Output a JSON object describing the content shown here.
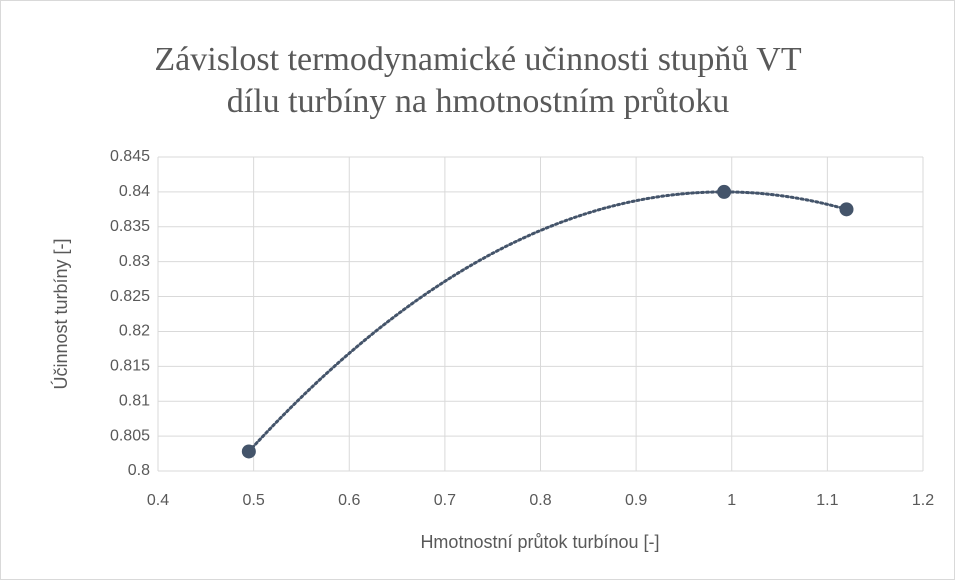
{
  "chart_data": {
    "type": "scatter",
    "title": [
      "Závislost termodynamické učinnosti stupňů VT",
      "dílu turbíny na hmotnostním průtoku"
    ],
    "xlabel": "Hmotnostní průtok turbínou [-]",
    "ylabel": "Účinnost turbíny [-]",
    "series": [
      {
        "name": "Účinnost turbíny",
        "color": "#44546a",
        "x": [
          0.495,
          0.992,
          1.12
        ],
        "values": [
          0.8028,
          0.84,
          0.8375
        ]
      }
    ],
    "trendline": {
      "type": "polynomial",
      "order": 2
    },
    "xlim": [
      0.4,
      1.2
    ],
    "xticks": [
      0.4,
      0.5,
      0.6,
      0.7,
      0.8,
      0.9,
      1,
      1.1,
      1.2
    ],
    "ylim": [
      0.8,
      0.845
    ],
    "yticks": [
      0.8,
      0.805,
      0.81,
      0.815,
      0.82,
      0.825,
      0.83,
      0.835,
      0.84,
      0.845
    ],
    "grid": true
  }
}
